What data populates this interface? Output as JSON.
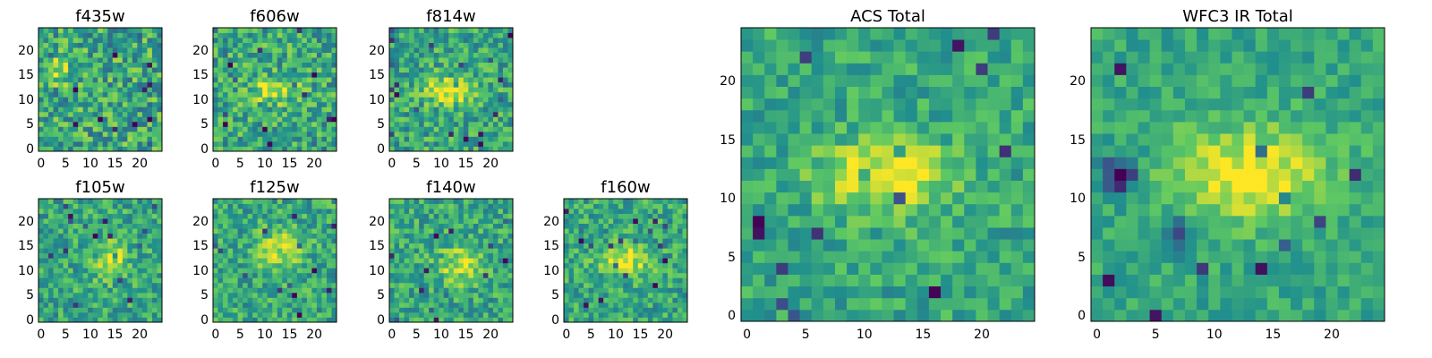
{
  "figure": {
    "background": "#ffffff"
  },
  "colormap": [
    "#440154",
    "#3b528b",
    "#21908d",
    "#5dc863",
    "#fde725"
  ],
  "chart_data": [
    {
      "type": "heatmap",
      "title": "f435w",
      "size": 25,
      "ylim": [
        0,
        24
      ],
      "xlim": [
        0,
        24
      ],
      "xticks": [
        "0",
        "5",
        "10",
        "15",
        "20"
      ],
      "yticks": [
        "0",
        "5",
        "10",
        "15",
        "20"
      ],
      "noise": 0.26,
      "blobs": [
        {
          "cx": 3,
          "cy": 16,
          "sx": 2.5,
          "sy": 2,
          "amp": 0.2
        }
      ]
    },
    {
      "type": "heatmap",
      "title": "f606w",
      "size": 25,
      "ylim": [
        0,
        24
      ],
      "xlim": [
        0,
        24
      ],
      "xticks": [
        "0",
        "5",
        "10",
        "15",
        "20"
      ],
      "yticks": [
        "0",
        "5",
        "10",
        "15",
        "20"
      ],
      "noise": 0.24,
      "blobs": [
        {
          "cx": 12,
          "cy": 12,
          "sx": 3.5,
          "sy": 1.8,
          "amp": 0.35
        }
      ]
    },
    {
      "type": "heatmap",
      "title": "f814w",
      "size": 25,
      "ylim": [
        0,
        24
      ],
      "xlim": [
        0,
        24
      ],
      "xticks": [
        "0",
        "5",
        "10",
        "15",
        "20"
      ],
      "yticks": [
        "0",
        "5",
        "10",
        "15",
        "20"
      ],
      "noise": 0.22,
      "blobs": [
        {
          "cx": 12,
          "cy": 12,
          "sx": 3.5,
          "sy": 1.8,
          "amp": 0.45
        }
      ]
    },
    {
      "type": "heatmap",
      "title": "f105w",
      "size": 25,
      "ylim": [
        0,
        24
      ],
      "xlim": [
        0,
        24
      ],
      "xticks": [
        "0",
        "5",
        "10",
        "15",
        "20"
      ],
      "yticks": [
        "0",
        "5",
        "10",
        "15",
        "20"
      ],
      "noise": 0.2,
      "blobs": [
        {
          "cx": 14,
          "cy": 12,
          "sx": 2.5,
          "sy": 2.5,
          "amp": 0.35
        }
      ]
    },
    {
      "type": "heatmap",
      "title": "f125w",
      "size": 25,
      "ylim": [
        0,
        24
      ],
      "xlim": [
        0,
        24
      ],
      "xticks": [
        "0",
        "5",
        "10",
        "15",
        "20"
      ],
      "yticks": [
        "0",
        "5",
        "10",
        "15",
        "20"
      ],
      "noise": 0.2,
      "blobs": [
        {
          "cx": 13,
          "cy": 14,
          "sx": 3,
          "sy": 3,
          "amp": 0.3
        }
      ]
    },
    {
      "type": "heatmap",
      "title": "f140w",
      "size": 25,
      "ylim": [
        0,
        24
      ],
      "xlim": [
        0,
        24
      ],
      "xticks": [
        "0",
        "5",
        "10",
        "15",
        "20"
      ],
      "yticks": [
        "0",
        "5",
        "10",
        "15",
        "20"
      ],
      "noise": 0.2,
      "blobs": [
        {
          "cx": 14,
          "cy": 11,
          "sx": 3,
          "sy": 2.5,
          "amp": 0.32
        }
      ]
    },
    {
      "type": "heatmap",
      "title": "f160w",
      "size": 25,
      "ylim": [
        0,
        24
      ],
      "xlim": [
        0,
        24
      ],
      "xticks": [
        "0",
        "5",
        "10",
        "15",
        "20"
      ],
      "yticks": [
        "0",
        "5",
        "10",
        "15",
        "20"
      ],
      "noise": 0.2,
      "blobs": [
        {
          "cx": 12,
          "cy": 12,
          "sx": 3.5,
          "sy": 2,
          "amp": 0.35
        }
      ]
    },
    {
      "type": "heatmap",
      "title": "ACS Total",
      "size": 25,
      "ylim": [
        0,
        24
      ],
      "xlim": [
        0,
        24
      ],
      "xticks": [
        "0",
        "5",
        "10",
        "15",
        "20"
      ],
      "yticks": [
        "0",
        "5",
        "10",
        "15",
        "20"
      ],
      "noise": 0.16,
      "blobs": [
        {
          "cx": 12,
          "cy": 12,
          "sx": 4,
          "sy": 2.2,
          "amp": 0.4
        }
      ]
    },
    {
      "type": "heatmap",
      "title": "WFC3 IR Total",
      "size": 25,
      "ylim": [
        0,
        24
      ],
      "xlim": [
        0,
        24
      ],
      "xticks": [
        "0",
        "5",
        "10",
        "15",
        "20"
      ],
      "yticks": [
        "0",
        "5",
        "10",
        "15",
        "20"
      ],
      "noise": 0.12,
      "blobs": [
        {
          "cx": 13,
          "cy": 12,
          "sx": 5,
          "sy": 3,
          "amp": 0.38
        },
        {
          "cx": 2,
          "cy": 12,
          "sx": 1.2,
          "sy": 1.2,
          "amp": -0.55
        },
        {
          "cx": 7,
          "cy": 7,
          "sx": 1,
          "sy": 1,
          "amp": -0.45
        }
      ]
    }
  ]
}
